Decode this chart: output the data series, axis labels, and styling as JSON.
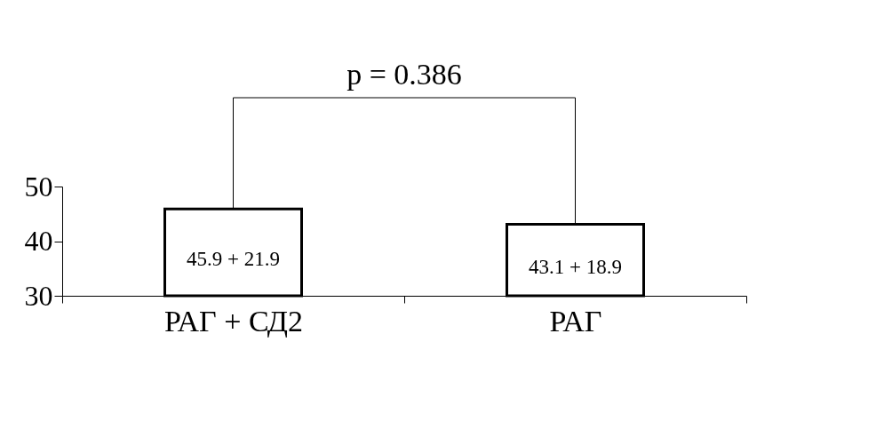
{
  "chart_data": {
    "type": "bar",
    "categories": [
      "РАГ + СД2",
      "РАГ"
    ],
    "values": [
      45.9,
      43.1
    ],
    "value_labels": [
      "45.9 + 21.9",
      "43.1 + 18.9"
    ],
    "color": "#ffffff",
    "ylim": [
      30,
      50
    ],
    "yticks": [
      30,
      40,
      50
    ],
    "annotations": [
      "p = 0.386"
    ]
  }
}
